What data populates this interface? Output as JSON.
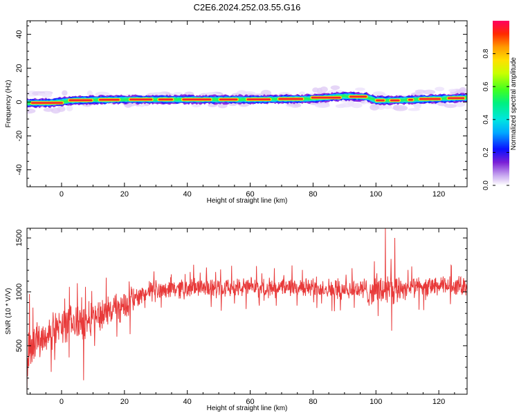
{
  "title": "C2E6.2024.252.03.55.G16",
  "chart_data": [
    {
      "type": "heatmap",
      "xlabel": "Height of straight line (km)",
      "ylabel": "Frequency (Hz)",
      "xlim": [
        -11,
        129
      ],
      "ylim": [
        -50,
        48
      ],
      "xticks": [
        0,
        20,
        40,
        60,
        80,
        100,
        120
      ],
      "yticks": [
        -40,
        -20,
        0,
        20,
        40
      ],
      "colorbar": {
        "label": "Normalized spectral amplitude",
        "range": [
          0,
          1
        ],
        "ticks": [
          0.0,
          0.2,
          0.4,
          0.6,
          0.8
        ]
      },
      "ridge": [
        {
          "x": -11,
          "freq": -0.5
        },
        {
          "x": -4,
          "freq": -0.5
        },
        {
          "x": 4,
          "freq": 1.0
        },
        {
          "x": 20,
          "freq": 1.5
        },
        {
          "x": 40,
          "freq": 1.5
        },
        {
          "x": 60,
          "freq": 1.5
        },
        {
          "x": 80,
          "freq": 2.0
        },
        {
          "x": 90,
          "freq": 3.5
        },
        {
          "x": 97,
          "freq": 3.0
        },
        {
          "x": 100,
          "freq": 1.0
        },
        {
          "x": 106,
          "freq": 1.0
        },
        {
          "x": 120,
          "freq": 2.0
        },
        {
          "x": 129,
          "freq": 2.5
        }
      ]
    },
    {
      "type": "line",
      "xlabel": "Height of straight line (km)",
      "ylabel": "SNR (10 * V/V)",
      "xlim": [
        -11,
        129
      ],
      "ylim": [
        50,
        1590
      ],
      "xticks": [
        0,
        20,
        40,
        60,
        80,
        100,
        120
      ],
      "yticks": [
        500,
        1000,
        1500
      ],
      "series": [
        {
          "color": "#e83a3a",
          "envelope": [
            {
              "x": -11,
              "mean": 220,
              "noise": 200
            },
            {
              "x": -10,
              "mean": 450,
              "noise": 250
            },
            {
              "x": -8,
              "mean": 550,
              "noise": 120
            },
            {
              "x": -5,
              "mean": 600,
              "noise": 120
            },
            {
              "x": 0,
              "mean": 680,
              "noise": 130
            },
            {
              "x": 5,
              "mean": 720,
              "noise": 160
            },
            {
              "x": 10,
              "mean": 760,
              "noise": 130
            },
            {
              "x": 15,
              "mean": 820,
              "noise": 120
            },
            {
              "x": 20,
              "mean": 880,
              "noise": 110
            },
            {
              "x": 25,
              "mean": 960,
              "noise": 90
            },
            {
              "x": 30,
              "mean": 1020,
              "noise": 80
            },
            {
              "x": 40,
              "mean": 1040,
              "noise": 75
            },
            {
              "x": 60,
              "mean": 1040,
              "noise": 70
            },
            {
              "x": 80,
              "mean": 1040,
              "noise": 70
            },
            {
              "x": 95,
              "mean": 1020,
              "noise": 80
            },
            {
              "x": 100,
              "mean": 1000,
              "noise": 130
            },
            {
              "x": 106,
              "mean": 1030,
              "noise": 120
            },
            {
              "x": 110,
              "mean": 1040,
              "noise": 75
            },
            {
              "x": 129,
              "mean": 1060,
              "noise": 70
            }
          ],
          "spikes": [
            {
              "x": -11,
              "y": 60
            },
            {
              "x": -10.2,
              "y": 980
            },
            {
              "x": 5,
              "y": 1080
            },
            {
              "x": 7,
              "y": 180
            },
            {
              "x": 103,
              "y": 1590
            },
            {
              "x": 105,
              "y": 640
            },
            {
              "x": 106,
              "y": 1500
            }
          ]
        }
      ]
    }
  ]
}
